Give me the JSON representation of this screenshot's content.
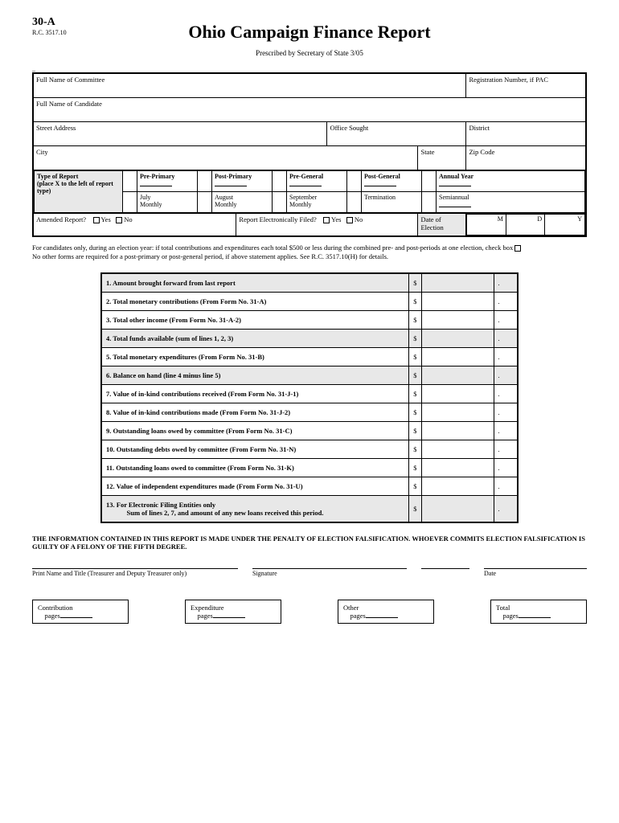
{
  "header": {
    "form_code": "30-A",
    "rc_code": "R.C. 3517.10",
    "title": "Ohio Campaign Finance Report",
    "prescribed": "Prescribed by Secretary of State 3/05"
  },
  "fields": {
    "committee_name": "Full Name of Committee",
    "reg_number": "Registration Number, if PAC",
    "candidate_name": "Full Name of Candidate",
    "street_address": "Street Address",
    "office_sought": "Office Sought",
    "district": "District",
    "city": "City",
    "state": "State",
    "zip": "Zip Code"
  },
  "report_type": {
    "header": "Type of Report",
    "sub": "(place X to the left of report type)",
    "options": {
      "pre_primary": "Pre-Primary",
      "post_primary": "Post-Primary",
      "pre_general": "Pre-General",
      "post_general": "Post-General",
      "annual_year": "Annual Year",
      "july_monthly": "July Monthly",
      "august_monthly": "August Monthly",
      "september_monthly": "September Monthly",
      "termination": "Termination",
      "semiannual": "Semiannual"
    }
  },
  "amended": {
    "label": "Amended Report?",
    "yes": "Yes",
    "no": "No",
    "efile": "Report Electronically Filed?",
    "election_date": "Date of Election",
    "m": "M",
    "d": "D",
    "y": "Y"
  },
  "notes": {
    "line1": "For candidates only, during an election year: if total contributions and expenditures each total $500 or less during the combined pre- and post-periods at one election, check box",
    "line2": "No other forms are required for a post-primary or post-general period, if above statement applies. See R.C. 3517.10(H) for details."
  },
  "summary": {
    "rows": [
      {
        "num": "1.",
        "label": "Amount brought forward from last report",
        "shaded": true
      },
      {
        "num": "2.",
        "label": "Total monetary contributions (From Form No. 31-A)",
        "shaded": false
      },
      {
        "num": "3.",
        "label": "Total other income (From Form No. 31-A-2)",
        "shaded": false
      },
      {
        "num": "4.",
        "label": "Total funds available (sum of lines 1, 2, 3)",
        "shaded": true
      },
      {
        "num": "5.",
        "label": "Total monetary expenditures (From Form No. 31-B)",
        "shaded": false
      },
      {
        "num": "6.",
        "label": "Balance on hand (line 4 minus line 5)",
        "shaded": true
      },
      {
        "num": "7.",
        "label": "Value of in-kind contributions received (From Form No. 31-J-1)",
        "shaded": false
      },
      {
        "num": "8.",
        "label": "Value of in-kind contributions made (From Form No. 31-J-2)",
        "shaded": false
      },
      {
        "num": "9.",
        "label": "Outstanding loans owed by committee (From Form No. 31-C)",
        "shaded": false
      },
      {
        "num": "10.",
        "label": "Outstanding debts owed by committee (From Form No. 31-N)",
        "shaded": false
      },
      {
        "num": "11.",
        "label": "Outstanding loans owed to committee (From Form No. 31-K)",
        "shaded": false
      },
      {
        "num": "12.",
        "label": "Value of independent expenditures made (From Form No. 31-U)",
        "shaded": false
      },
      {
        "num": "13.",
        "label": "For Electronic Filing Entities only\n       Sum of lines 2, 7, and amount of any new loans received this period.",
        "shaded": true
      }
    ],
    "dollar": "$",
    "dot": "."
  },
  "certification": "THE INFORMATION CONTAINED IN THIS REPORT IS MADE UNDER THE PENALTY OF ELECTION FALSIFICATION. WHOEVER COMMITS ELECTION FALSIFICATION IS GUILTY OF A FELONY OF THE  FIFTH DEGREE.",
  "signatures": {
    "print_name": "Print Name and Title (Treasurer and Deputy Treasurer only)",
    "signature": "Signature",
    "date": "Date"
  },
  "pages": {
    "contribution": "Contribution",
    "expenditure": "Expenditure",
    "other": "Other",
    "total": "Total",
    "pages_label": "pages"
  }
}
